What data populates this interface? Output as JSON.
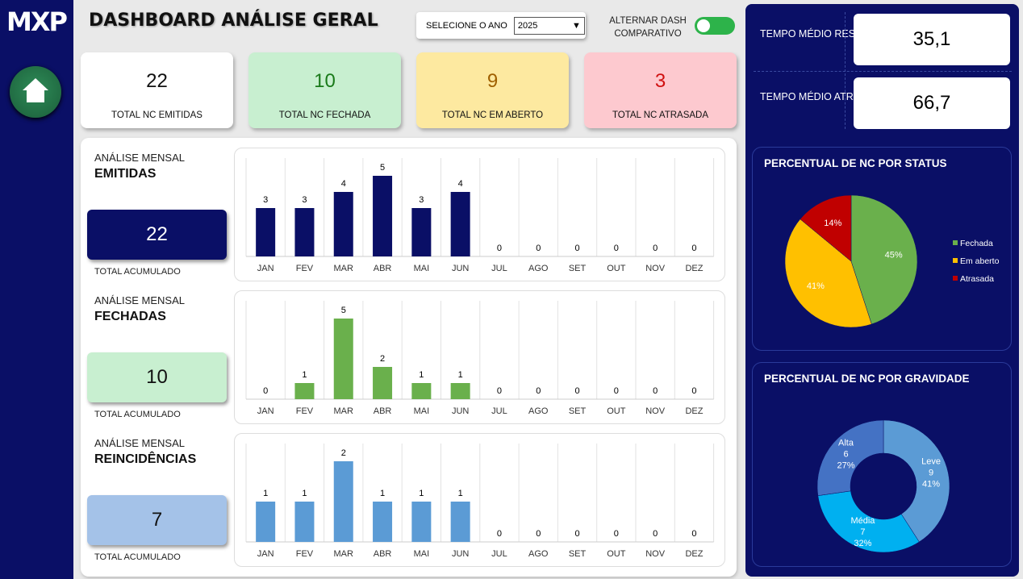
{
  "logo": "MXP",
  "header": {
    "title": "DASHBOARD ANÁLISE GERAL",
    "year_label": "SELECIONE O ANO",
    "year_value": "2025",
    "toggle_label": "ALTERNAR DASH COMPARATIVO"
  },
  "kpis": [
    {
      "value": "22",
      "label": "TOTAL NC EMITIDAS",
      "bg": "#ffffff",
      "color": "#111111"
    },
    {
      "value": "10",
      "label": "TOTAL NC FECHADA",
      "bg": "#c8efd0",
      "color": "#1a7a1a"
    },
    {
      "value": "9",
      "label": "TOTAL NC EM ABERTO",
      "bg": "#fde9a0",
      "color": "#a06000"
    },
    {
      "value": "3",
      "label": "TOTAL NC ATRASADA",
      "bg": "#fdc9cf",
      "color": "#d01010"
    }
  ],
  "sections": [
    {
      "t1": "ANÁLISE MENSAL",
      "t2": "EMITIDAS",
      "total": "22",
      "total_label": "TOTAL ACUMULADO"
    },
    {
      "t1": "ANÁLISE MENSAL",
      "t2": "FECHADAS",
      "total": "10",
      "total_label": "TOTAL ACUMULADO"
    },
    {
      "t1": "ANÁLISE MENSAL",
      "t2": "REINCIDÊNCIAS",
      "total": "7",
      "total_label": "TOTAL ACUMULADO"
    }
  ],
  "right": {
    "m1_label": "TEMPO MÉDIO RESOLUÇÃO",
    "m1_value": "35,1",
    "m2_label": "TEMPO MÉDIO ATRASADAS",
    "m2_value": "66,7"
  },
  "chart_data": [
    {
      "type": "bar",
      "title": "EMITIDAS",
      "categories": [
        "JAN",
        "FEV",
        "MAR",
        "ABR",
        "MAI",
        "JUN",
        "JUL",
        "AGO",
        "SET",
        "OUT",
        "NOV",
        "DEZ"
      ],
      "values": [
        3,
        3,
        4,
        5,
        3,
        4,
        0,
        0,
        0,
        0,
        0,
        0
      ],
      "color": "#0a0f66"
    },
    {
      "type": "bar",
      "title": "FECHADAS",
      "categories": [
        "JAN",
        "FEV",
        "MAR",
        "ABR",
        "MAI",
        "JUN",
        "JUL",
        "AGO",
        "SET",
        "OUT",
        "NOV",
        "DEZ"
      ],
      "values": [
        0,
        1,
        5,
        2,
        1,
        1,
        0,
        0,
        0,
        0,
        0,
        0
      ],
      "color": "#6ab04c"
    },
    {
      "type": "bar",
      "title": "REINCIDÊNCIAS",
      "categories": [
        "JAN",
        "FEV",
        "MAR",
        "ABR",
        "MAI",
        "JUN",
        "JUL",
        "AGO",
        "SET",
        "OUT",
        "NOV",
        "DEZ"
      ],
      "values": [
        1,
        1,
        2,
        1,
        1,
        1,
        0,
        0,
        0,
        0,
        0,
        0
      ],
      "color": "#5b9bd5"
    },
    {
      "type": "pie",
      "title": "PERCENTUAL DE NC POR STATUS",
      "labels": [
        "Fechada",
        "Em aberto",
        "Atrasada"
      ],
      "values": [
        45,
        41,
        14
      ],
      "data_labels": [
        "45%",
        "41%",
        "14%"
      ],
      "colors": [
        "#6ab04c",
        "#ffc000",
        "#c00000"
      ]
    },
    {
      "type": "pie",
      "title": "PERCENTUAL DE NC POR GRAVIDADE",
      "labels": [
        "Leve",
        "Média",
        "Alta"
      ],
      "values": [
        9,
        7,
        6
      ],
      "data_labels": [
        "41%",
        "32%",
        "27%"
      ],
      "colors": [
        "#5b9bd5",
        "#00b0f0",
        "#4472c4"
      ]
    }
  ]
}
